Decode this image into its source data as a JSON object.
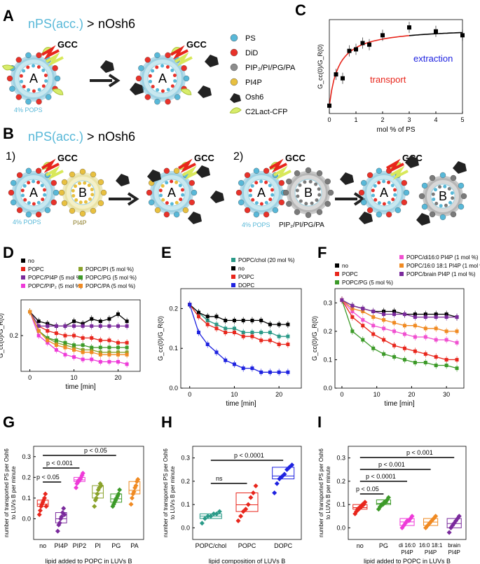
{
  "panels": {
    "A": "A",
    "B": "B",
    "C": "C",
    "D": "D",
    "E": "E",
    "F": "F",
    "G": "G",
    "H": "H",
    "I": "I"
  },
  "schematic": {
    "headline_left": "nPS(acc.)",
    "headline_gt": ">",
    "headline_right": "nOsh6",
    "gcc": "GCC",
    "vesicle_a": "A",
    "vesicle_b": "B",
    "pops_label": "4% POPS",
    "pi4p_label": "PI4P",
    "b_lipids_label": "PIP₂/PI/PG/PA",
    "step1": "1)",
    "step2": "2)",
    "legend": [
      "PS",
      "DiD",
      "PIP₂/PI/PG/PA",
      "PI4P",
      "Osh6",
      "C2Lact-CFP"
    ]
  },
  "colors": {
    "ps": "#58b8d8",
    "did": "#e8322a",
    "grey": "#8c8c8c",
    "pi4p": "#e8c040",
    "membrane": "#c8e8f0",
    "black": "#000000",
    "red": "#e8261c",
    "blue": "#1e22e0",
    "green": "#3c9a28",
    "teal": "#2a9a88",
    "magenta": "#ee3ad8",
    "purple": "#7a2a9c",
    "olive": "#8aa22a",
    "orange": "#f08a22",
    "pink": "#f050d0"
  },
  "chart_data": [
    {
      "panel": "C",
      "type": "scatter",
      "xlabel": "mol % of PS",
      "ylabel": "G_cc(0)/G_R(0)",
      "xlim": [
        0,
        5
      ],
      "x_ticks": [
        0,
        1,
        2,
        3,
        4,
        5
      ],
      "x": [
        0,
        0.25,
        0.5,
        0.75,
        1,
        1.25,
        1.5,
        2,
        3,
        4,
        5
      ],
      "y": [
        0.1,
        0.5,
        0.45,
        0.8,
        0.82,
        0.9,
        0.88,
        1.0,
        1.1,
        1.05,
        1.0
      ],
      "annotations": [
        "transport",
        "extraction"
      ]
    },
    {
      "panel": "D",
      "type": "line",
      "xlabel": "time [min]",
      "ylabel": "G_cc(0)/G_R(0)",
      "xlim": [
        -2,
        25
      ],
      "ylim": [
        0.05,
        0.35
      ],
      "x_ticks": [
        0,
        10,
        20
      ],
      "y_ticks": [
        0.2
      ],
      "x": [
        0,
        2,
        4,
        6,
        8,
        10,
        12,
        14,
        16,
        18,
        20,
        22
      ],
      "series": [
        {
          "name": "no",
          "color": "#000000",
          "values": [
            0.3,
            0.26,
            0.25,
            0.24,
            0.24,
            0.26,
            0.25,
            0.27,
            0.26,
            0.27,
            0.29,
            0.26
          ]
        },
        {
          "name": "POPC",
          "color": "#e8261c",
          "values": [
            0.3,
            0.24,
            0.22,
            0.21,
            0.2,
            0.2,
            0.19,
            0.19,
            0.18,
            0.18,
            0.17,
            0.17
          ]
        },
        {
          "name": "POPC/PI4P (5 mol %)",
          "color": "#7a2a9c",
          "values": [
            0.3,
            0.24,
            0.24,
            0.24,
            0.24,
            0.24,
            0.24,
            0.24,
            0.24,
            0.24,
            0.24,
            0.24
          ]
        },
        {
          "name": "POPC/PIP₂ (5 mol %)",
          "color": "#ee3ad8",
          "values": [
            0.3,
            0.2,
            0.17,
            0.14,
            0.12,
            0.11,
            0.1,
            0.1,
            0.09,
            0.09,
            0.09,
            0.08
          ]
        },
        {
          "name": "POPC/PI (5 mol %)",
          "color": "#8aa22a",
          "values": [
            0.3,
            0.22,
            0.19,
            0.17,
            0.16,
            0.15,
            0.14,
            0.14,
            0.13,
            0.13,
            0.13,
            0.13
          ]
        },
        {
          "name": "POPC/PG (5 mol %)",
          "color": "#3c9a28",
          "values": [
            0.3,
            0.22,
            0.19,
            0.18,
            0.17,
            0.16,
            0.16,
            0.15,
            0.15,
            0.15,
            0.15,
            0.15
          ]
        },
        {
          "name": "POPC/PA (5 mol %)",
          "color": "#f08a22",
          "values": [
            0.3,
            0.22,
            0.18,
            0.16,
            0.15,
            0.14,
            0.13,
            0.13,
            0.12,
            0.12,
            0.12,
            0.12
          ]
        }
      ]
    },
    {
      "panel": "E",
      "type": "line",
      "xlabel": "time [min]",
      "ylabel": "G_cc(0)/G_R(0)",
      "xlim": [
        -2,
        25
      ],
      "ylim": [
        0,
        0.25
      ],
      "x_ticks": [
        0,
        10,
        20
      ],
      "y_ticks": [
        0.0,
        0.1,
        0.2
      ],
      "x": [
        0,
        2,
        4,
        6,
        8,
        10,
        12,
        14,
        16,
        18,
        20,
        22
      ],
      "series": [
        {
          "name": "POPC/chol (20 mol %)",
          "color": "#2a9a88",
          "values": [
            0.21,
            0.19,
            0.17,
            0.16,
            0.15,
            0.15,
            0.14,
            0.14,
            0.14,
            0.14,
            0.13,
            0.13
          ]
        },
        {
          "name": "no",
          "color": "#000000",
          "values": [
            0.21,
            0.19,
            0.18,
            0.18,
            0.17,
            0.17,
            0.17,
            0.17,
            0.17,
            0.16,
            0.16,
            0.16
          ]
        },
        {
          "name": "POPC",
          "color": "#e8261c",
          "values": [
            0.21,
            0.18,
            0.16,
            0.15,
            0.14,
            0.14,
            0.13,
            0.13,
            0.12,
            0.12,
            0.11,
            0.11
          ]
        },
        {
          "name": "DOPC",
          "color": "#1e22e0",
          "values": [
            0.21,
            0.14,
            0.11,
            0.09,
            0.07,
            0.06,
            0.05,
            0.05,
            0.04,
            0.04,
            0.04,
            0.04
          ]
        }
      ]
    },
    {
      "panel": "F",
      "type": "line",
      "xlabel": "time [min]",
      "ylabel": "G_cc(0)/G_R(0)",
      "xlim": [
        -2,
        35
      ],
      "ylim": [
        0,
        0.35
      ],
      "x_ticks": [
        0,
        10,
        20,
        30
      ],
      "y_ticks": [
        0.0,
        0.1,
        0.2,
        0.3
      ],
      "x": [
        0,
        3,
        6,
        9,
        12,
        15,
        18,
        21,
        24,
        27,
        30,
        33
      ],
      "series": [
        {
          "name": "no",
          "color": "#000000",
          "values": [
            0.31,
            0.29,
            0.28,
            0.27,
            0.27,
            0.27,
            0.26,
            0.26,
            0.26,
            0.26,
            0.26,
            0.25
          ]
        },
        {
          "name": "POPC",
          "color": "#e8261c",
          "values": [
            0.31,
            0.25,
            0.22,
            0.19,
            0.17,
            0.15,
            0.14,
            0.13,
            0.12,
            0.11,
            0.1,
            0.1
          ]
        },
        {
          "name": "POPC/PG (5 mol %)",
          "color": "#3c9a28",
          "values": [
            0.31,
            0.2,
            0.17,
            0.14,
            0.12,
            0.11,
            0.1,
            0.09,
            0.09,
            0.08,
            0.08,
            0.07
          ]
        },
        {
          "name": "POPC/di16:0 PI4P (1 mol %)",
          "color": "#f050d0",
          "values": [
            0.31,
            0.27,
            0.24,
            0.22,
            0.21,
            0.2,
            0.19,
            0.18,
            0.18,
            0.17,
            0.17,
            0.16
          ]
        },
        {
          "name": "POPC/16:0 18:1 PI4P (1 mol %)",
          "color": "#f08a22",
          "values": [
            0.31,
            0.28,
            0.27,
            0.25,
            0.24,
            0.23,
            0.22,
            0.22,
            0.21,
            0.21,
            0.2,
            0.2
          ]
        },
        {
          "name": "POPC/brain PI4P (1 mol %)",
          "color": "#7a2a9c",
          "values": [
            0.31,
            0.29,
            0.28,
            0.27,
            0.26,
            0.26,
            0.26,
            0.25,
            0.25,
            0.25,
            0.25,
            0.25
          ]
        }
      ]
    },
    {
      "panel": "G",
      "type": "scatter",
      "xlabel": "lipid added to POPC in LUVs B",
      "ylabel": "number of transported PS per Osh6 to LUVs B per minute",
      "ylim": [
        -0.1,
        0.35
      ],
      "y_ticks": [
        0.0,
        0.1,
        0.2,
        0.3
      ],
      "categories": [
        "no",
        "PI4P",
        "PIP2",
        "PI",
        "PG",
        "PA"
      ],
      "colors": [
        "#e8261c",
        "#7a2a9c",
        "#ee3ad8",
        "#8aa22a",
        "#3c9a28",
        "#f08a22"
      ],
      "values": [
        [
          0.02,
          0.04,
          0.06,
          0.07,
          0.08,
          0.09,
          0.1,
          0.12,
          0.06
        ],
        [
          -0.06,
          -0.03,
          -0.02,
          0.0,
          0.01,
          0.03,
          0.05,
          0.02
        ],
        [
          0.15,
          0.17,
          0.18,
          0.18,
          0.19,
          0.19,
          0.2,
          0.21,
          0.22
        ],
        [
          0.06,
          0.09,
          0.1,
          0.12,
          0.14,
          0.15,
          0.17,
          0.16
        ],
        [
          0.06,
          0.07,
          0.08,
          0.09,
          0.1,
          0.11,
          0.12,
          0.14
        ],
        [
          0.07,
          0.1,
          0.12,
          0.13,
          0.15,
          0.16,
          0.18,
          0.19
        ]
      ],
      "significance": [
        "p < 0.05",
        "p < 0.001",
        "p < 0.05"
      ]
    },
    {
      "panel": "H",
      "type": "scatter",
      "xlabel": "lipid composition of LUVs B",
      "ylabel": "number of transported PS per Osh6 to LUVs B per minute",
      "ylim": [
        -0.05,
        0.35
      ],
      "y_ticks": [
        0.0,
        0.1,
        0.2,
        0.3
      ],
      "categories": [
        "POPC/chol",
        "POPC",
        "DOPC"
      ],
      "colors": [
        "#2a9a88",
        "#e8261c",
        "#1e22e0"
      ],
      "values": [
        [
          0.02,
          0.04,
          0.05,
          0.05,
          0.06,
          0.06,
          0.07
        ],
        [
          0.03,
          0.05,
          0.07,
          0.08,
          0.1,
          0.13,
          0.15,
          0.18
        ],
        [
          0.15,
          0.19,
          0.21,
          0.22,
          0.23,
          0.25,
          0.26,
          0.27
        ]
      ],
      "significance": [
        "ns",
        "p < 0.0001"
      ]
    },
    {
      "panel": "I",
      "type": "scatter",
      "xlabel": "lipid added to POPC in LUVs B",
      "ylabel": "number of transported PS per Osh6 to LUVs B per minute",
      "ylim": [
        -0.05,
        0.35
      ],
      "y_ticks": [
        0.0,
        0.1,
        0.2,
        0.3
      ],
      "categories": [
        "no",
        "PG",
        "di 16:0 PI4P",
        "16:0 18:1 PI4P",
        "brain PI4P"
      ],
      "colors": [
        "#e8261c",
        "#3c9a28",
        "#ee3ad8",
        "#f08a22",
        "#7a2a9c"
      ],
      "values": [
        [
          0.06,
          0.07,
          0.08,
          0.08,
          0.09,
          0.09,
          0.1,
          0.1,
          0.11
        ],
        [
          0.08,
          0.09,
          0.1,
          0.1,
          0.11,
          0.11,
          0.12,
          0.13
        ],
        [
          0.0,
          0.01,
          0.02,
          0.03,
          0.03,
          0.04,
          0.05
        ],
        [
          0.0,
          0.01,
          0.02,
          0.03,
          0.04,
          0.05
        ],
        [
          -0.02,
          0.0,
          0.01,
          0.02,
          0.03,
          0.04,
          0.05
        ]
      ],
      "significance": [
        "p < 0.05",
        "p < 0.0001",
        "p < 0.001",
        "p < 0.001"
      ]
    }
  ]
}
